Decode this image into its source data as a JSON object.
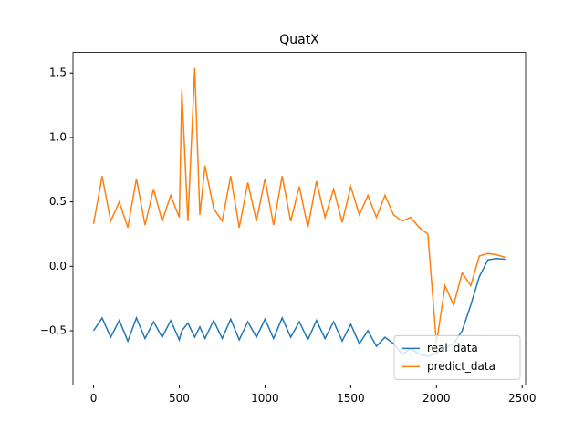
{
  "chart_data": {
    "type": "line",
    "title": "QuatX",
    "x": [
      0,
      50,
      100,
      150,
      200,
      250,
      300,
      350,
      400,
      450,
      500,
      515,
      550,
      590,
      620,
      650,
      700,
      750,
      800,
      850,
      900,
      950,
      1000,
      1050,
      1100,
      1150,
      1200,
      1250,
      1300,
      1350,
      1400,
      1450,
      1500,
      1550,
      1600,
      1650,
      1700,
      1750,
      1800,
      1850,
      1900,
      1950,
      2000,
      2050,
      2100,
      2150,
      2200,
      2250,
      2300,
      2350,
      2400
    ],
    "series": [
      {
        "name": "real_data",
        "color": "#1f77b4",
        "values": [
          -0.5,
          -0.4,
          -0.55,
          -0.42,
          -0.58,
          -0.4,
          -0.56,
          -0.43,
          -0.55,
          -0.42,
          -0.57,
          -0.5,
          -0.44,
          -0.55,
          -0.47,
          -0.56,
          -0.42,
          -0.56,
          -0.41,
          -0.57,
          -0.43,
          -0.55,
          -0.41,
          -0.56,
          -0.4,
          -0.55,
          -0.43,
          -0.57,
          -0.42,
          -0.56,
          -0.43,
          -0.58,
          -0.45,
          -0.6,
          -0.5,
          -0.62,
          -0.55,
          -0.6,
          -0.68,
          -0.64,
          -0.68,
          -0.7,
          -0.67,
          -0.63,
          -0.6,
          -0.5,
          -0.3,
          -0.08,
          0.05,
          0.06,
          0.055
        ]
      },
      {
        "name": "predict_data",
        "color": "#ff7f0e",
        "values": [
          0.33,
          0.7,
          0.35,
          0.5,
          0.3,
          0.68,
          0.32,
          0.6,
          0.35,
          0.55,
          0.38,
          1.37,
          0.35,
          1.54,
          0.4,
          0.78,
          0.45,
          0.35,
          0.7,
          0.3,
          0.65,
          0.35,
          0.68,
          0.32,
          0.7,
          0.35,
          0.62,
          0.3,
          0.66,
          0.38,
          0.6,
          0.34,
          0.62,
          0.4,
          0.55,
          0.38,
          0.55,
          0.4,
          0.35,
          0.38,
          0.3,
          0.25,
          -0.6,
          -0.15,
          -0.3,
          -0.05,
          -0.15,
          0.08,
          0.1,
          0.09,
          0.07
        ]
      }
    ],
    "xlim": [
      -120,
      2520
    ],
    "ylim": [
      -0.92,
      1.66
    ],
    "xticks": [
      0,
      500,
      1000,
      1500,
      2000,
      2500
    ],
    "yticks": [
      {
        "value": -0.5,
        "label": "−0.5"
      },
      {
        "value": 0,
        "label": "0.0"
      },
      {
        "value": 0.5,
        "label": "0.5"
      },
      {
        "value": 1,
        "label": "1.0"
      },
      {
        "value": 1.5,
        "label": "1.5"
      }
    ],
    "legend": "lower right",
    "grid": false
  }
}
